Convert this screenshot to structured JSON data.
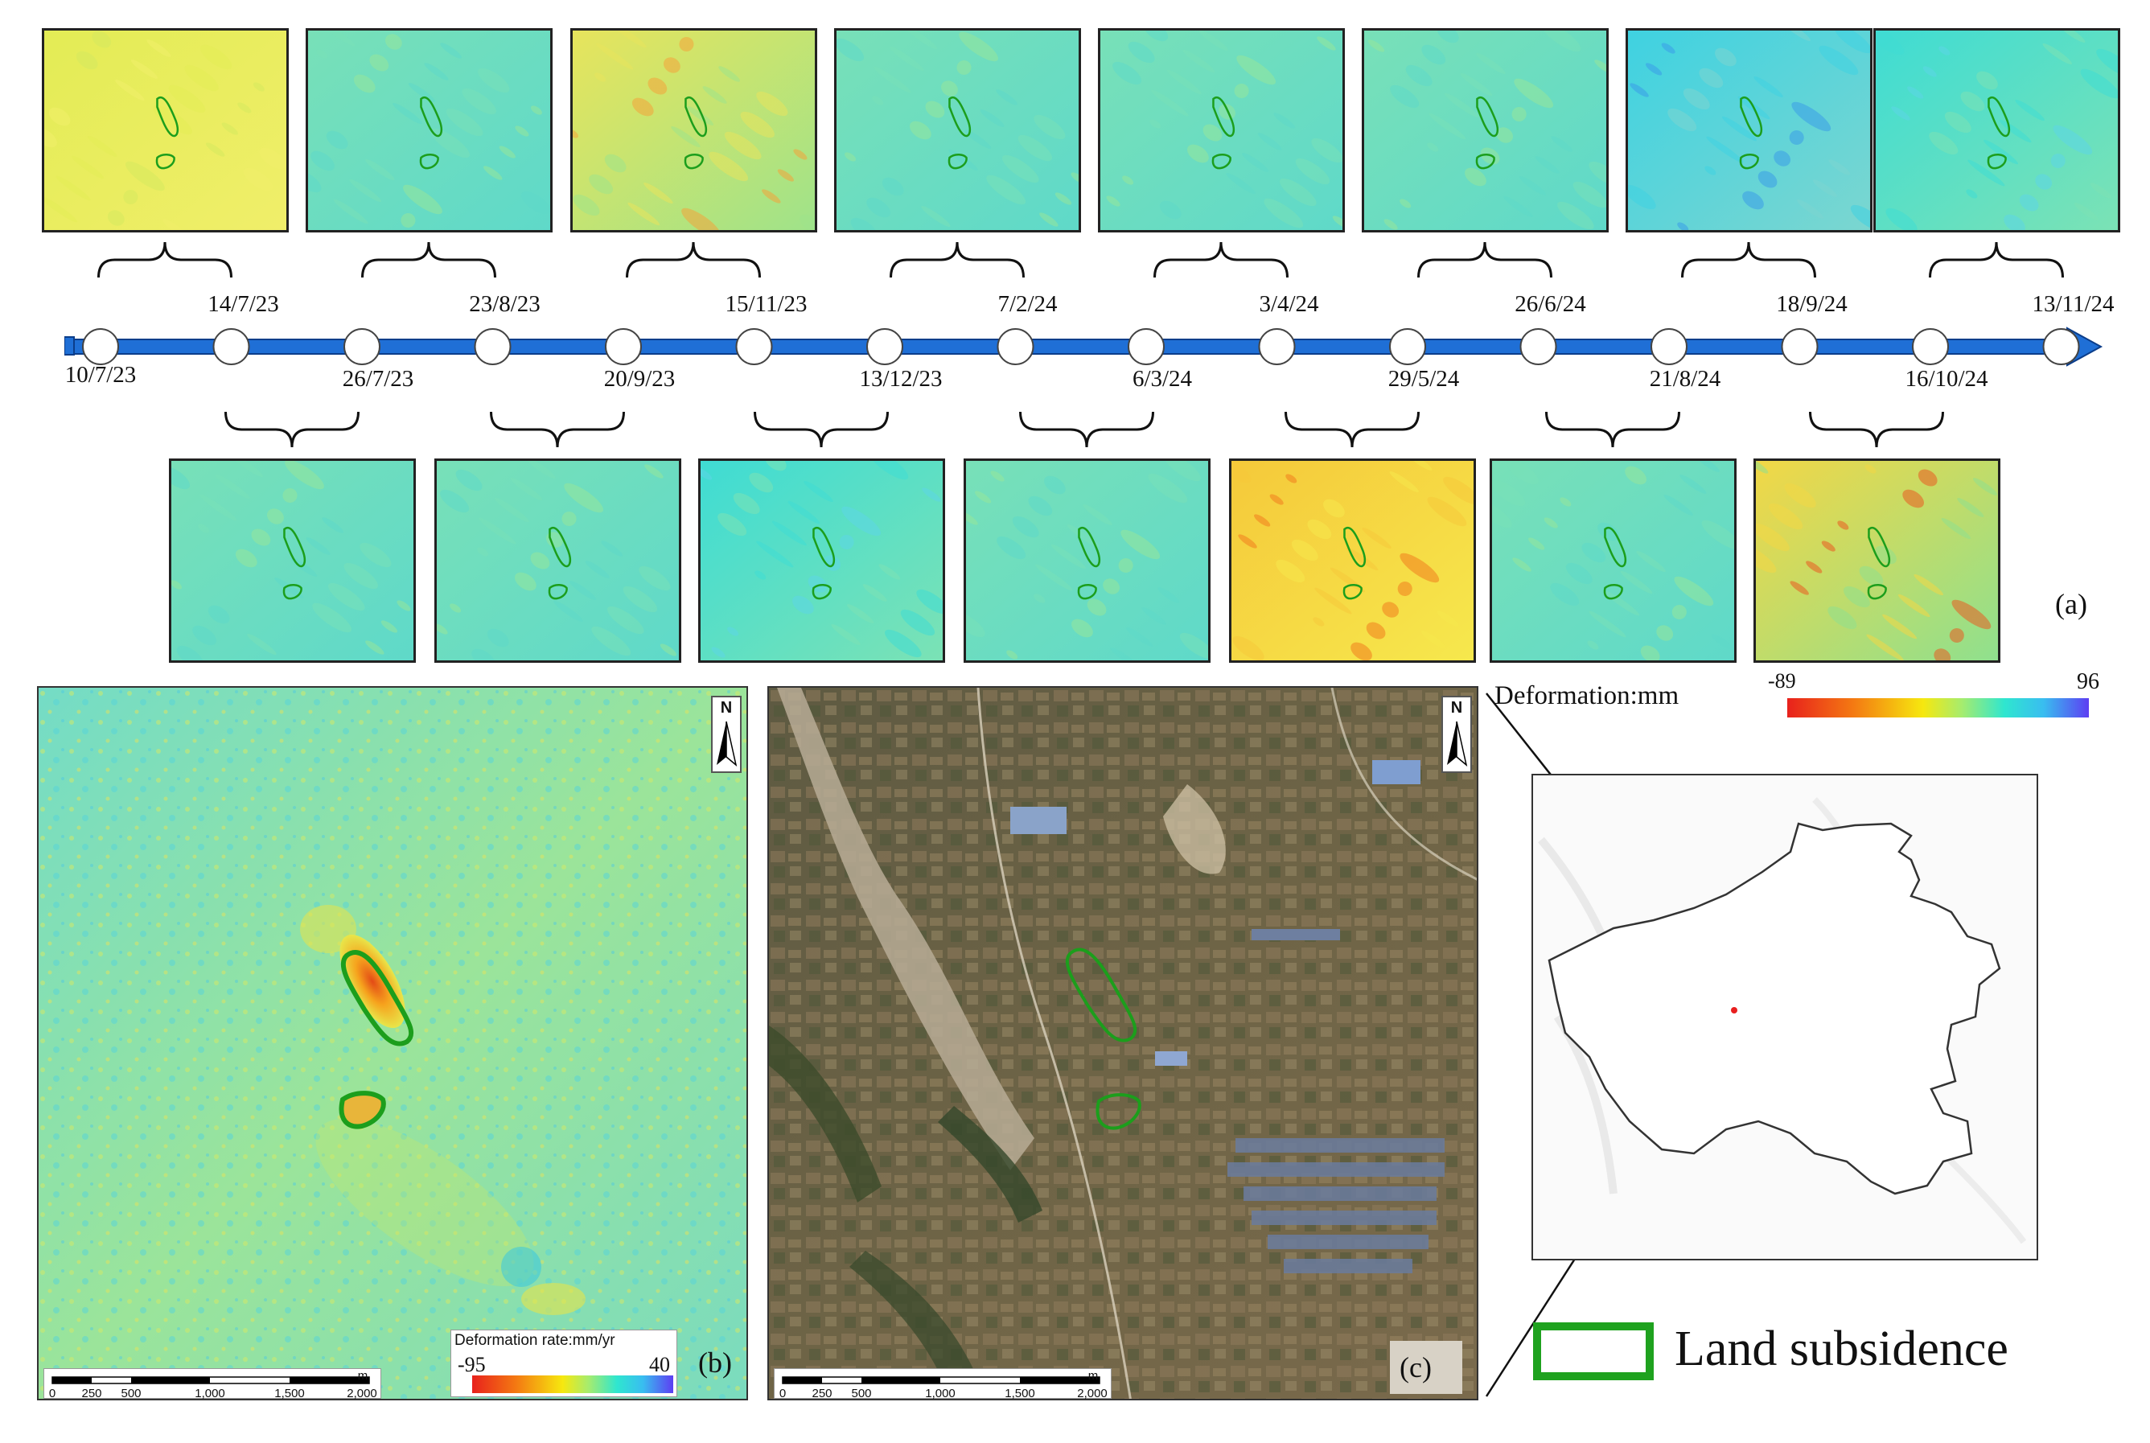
{
  "timeline": {
    "dates_above": [
      "14/7/23",
      "23/8/23",
      "15/11/23",
      "7/2/24",
      "3/4/24",
      "26/6/24",
      "18/9/24",
      "13/11/24"
    ],
    "dates_below": [
      "10/7/23",
      "26/7/23",
      "20/9/23",
      "13/12/23",
      "6/3/24",
      "29/5/24",
      "21/8/24",
      "16/10/24"
    ]
  },
  "panel_labels": {
    "a": "(a)",
    "b": "(b)",
    "c": "(c)"
  },
  "deformation_legend": {
    "title": "Deformation:mm",
    "min": "-89",
    "max": "96"
  },
  "rate_legend": {
    "title": "Deformation rate:mm/yr",
    "min": "-95",
    "max": "40"
  },
  "north_label": "N",
  "scalebar": {
    "unit": "m",
    "ticks": [
      "0",
      "250",
      "500",
      "1,000",
      "1,500",
      "2,000"
    ]
  },
  "legend": {
    "label": "Land subsidence"
  },
  "colors": {
    "timeline": "#1f6fd6",
    "outline": "#1c9e1c",
    "legend_box": "#1fa21f"
  }
}
